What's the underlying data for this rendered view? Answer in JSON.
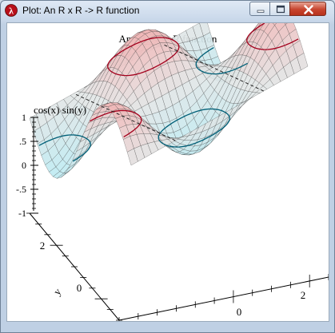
{
  "window": {
    "title": "Plot: An R x R -> R function",
    "icons": {
      "app": "maple-leaf-icon",
      "minimize": "minimize-icon",
      "maximize": "maximize-icon",
      "close": "close-icon"
    }
  },
  "chart_data": {
    "type": "surface3d",
    "title": "An R x R -> R function",
    "function": "cos(x) sin(y)",
    "zlabel": "cos(x) sin(y)",
    "xlabel": "x",
    "ylabel": "y",
    "zlim": [
      -1,
      1
    ],
    "z_ticks": [
      "1",
      ".5",
      "0",
      "-.5",
      "-1"
    ],
    "x_ticks": [
      "0",
      "2"
    ],
    "y_ticks": [
      "2",
      "0"
    ],
    "contours": [
      -0.5,
      0.5
    ],
    "colors": {
      "high": "#f1b7b7",
      "low": "#bfeaf2",
      "mid": "#e2e6e6",
      "mesh": "#3b3b3b",
      "contour_high": "#a3001c",
      "contour_low": "#005f77"
    }
  }
}
